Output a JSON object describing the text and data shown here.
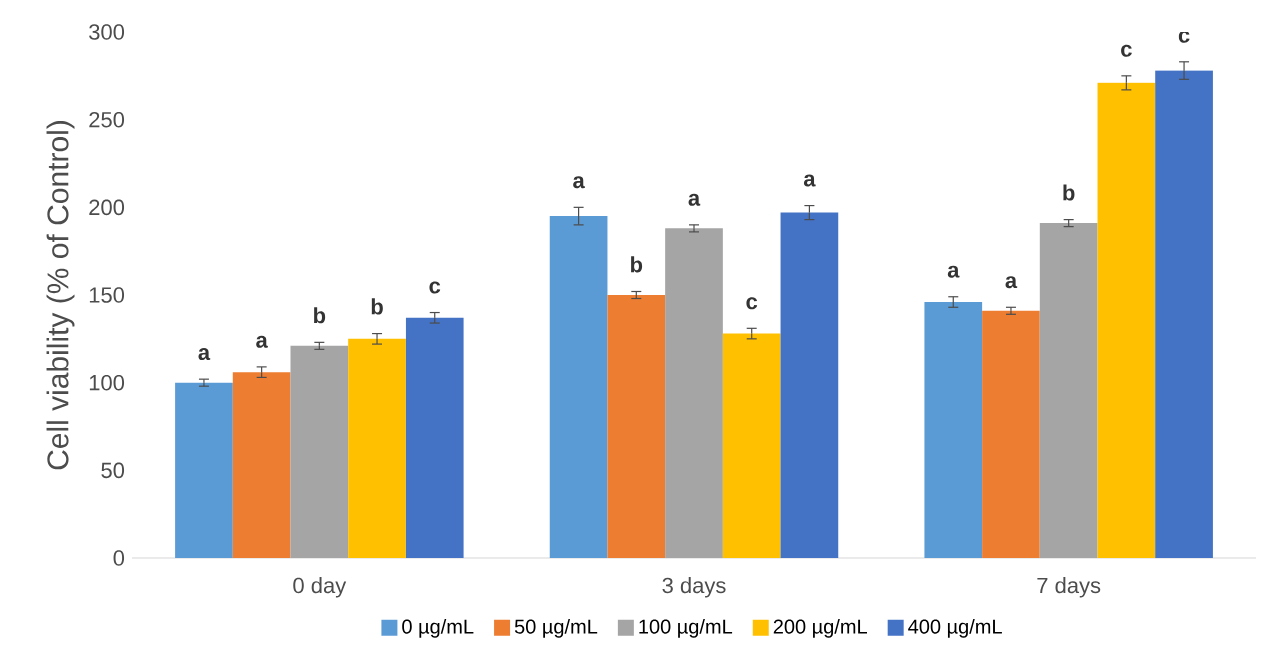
{
  "chart_data": {
    "type": "bar",
    "ylabel": "Cell viability (% of Control)",
    "categories": [
      "0 day",
      "3 days",
      "7 days"
    ],
    "series": [
      {
        "name": "0 µg/mL",
        "color": "#5b9bd5",
        "values": [
          100,
          195,
          146
        ],
        "errors": [
          2,
          5,
          3
        ],
        "value_labels": [
          "a",
          "a",
          "a"
        ]
      },
      {
        "name": "50 µg/mL",
        "color": "#ed7d31",
        "values": [
          106,
          150,
          141
        ],
        "errors": [
          3,
          2,
          2
        ],
        "value_labels": [
          "a",
          "b",
          "a"
        ]
      },
      {
        "name": "100 µg/mL",
        "color": "#a5a5a5",
        "values": [
          121,
          188,
          191
        ],
        "errors": [
          2,
          2,
          2
        ],
        "value_labels": [
          "b",
          "a",
          "b"
        ]
      },
      {
        "name": "200 µg/mL",
        "color": "#ffc000",
        "values": [
          125,
          128,
          271
        ],
        "errors": [
          3,
          3,
          4
        ],
        "value_labels": [
          "b",
          "c",
          "c"
        ]
      },
      {
        "name": "400 µg/mL",
        "color": "#4472c4",
        "values": [
          137,
          197,
          278
        ],
        "errors": [
          3,
          4,
          5
        ],
        "value_labels": [
          "c",
          "a",
          "c"
        ]
      }
    ],
    "ylim": [
      0,
      300
    ],
    "yticks": [
      0,
      50,
      100,
      150,
      200,
      250,
      300
    ],
    "grid": false,
    "legend": "bottom"
  }
}
